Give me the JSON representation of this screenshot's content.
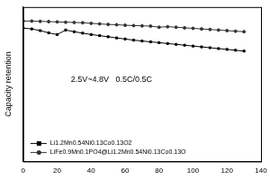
{
  "chart_data": {
    "type": "line",
    "y_label": "Capacity retention",
    "annotations": [
      "2.5V~4.8V",
      "0.5C/0.5C"
    ],
    "x": [
      0,
      5,
      10,
      15,
      20,
      25,
      30,
      35,
      40,
      45,
      50,
      55,
      60,
      65,
      70,
      75,
      80,
      85,
      90,
      95,
      100,
      105,
      110,
      115,
      120,
      125,
      130
    ],
    "series": [
      {
        "name": "Li1.2Mn0.54Ni0.13Co0.13O2",
        "color": "#000000",
        "marker": "square",
        "values": [
          0.975,
          0.972,
          0.966,
          0.958,
          0.952,
          0.968,
          0.962,
          0.957,
          0.952,
          0.948,
          0.944,
          0.94,
          0.936,
          0.932,
          0.929,
          0.926,
          0.923,
          0.92,
          0.917,
          0.914,
          0.911,
          0.908,
          0.905,
          0.902,
          0.899,
          0.896,
          0.893
        ]
      },
      {
        "name": "LiFe0.9Mn0.1PO4@Li1.2Mn0.54Ni0.13Co0.13O",
        "color": "#333333",
        "marker": "circle",
        "values": [
          1.0,
          1.0,
          0.999,
          0.998,
          0.997,
          0.996,
          0.995,
          0.994,
          0.992,
          0.99,
          0.988,
          0.987,
          0.985,
          0.984,
          0.983,
          0.982,
          0.978,
          0.98,
          0.978,
          0.976,
          0.974,
          0.972,
          0.97,
          0.968,
          0.966,
          0.964,
          0.962
        ]
      }
    ],
    "xlim": [
      0,
      140
    ],
    "xticks": [
      0,
      20,
      40,
      60,
      80,
      100,
      120,
      140
    ],
    "ylim": [
      0.5,
      1.05
    ],
    "yticks": [
      0.5,
      0.6,
      0.7,
      0.8,
      0.9,
      1.0
    ],
    "tick_labels": "x",
    "grid": false,
    "legend": "lower left"
  }
}
